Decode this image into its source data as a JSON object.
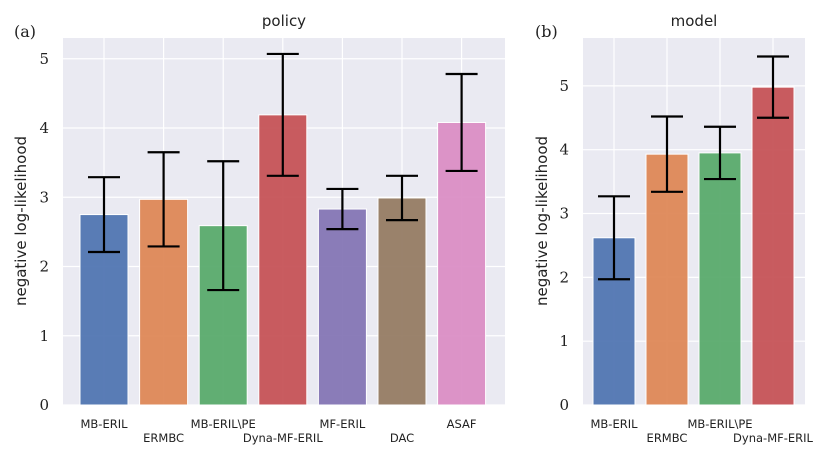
{
  "chart_data": [
    {
      "type": "bar",
      "panel_label": "(a)",
      "title": "policy",
      "xlabel": "",
      "ylabel": "negative log-likelihood",
      "ylim": [
        0,
        5.3
      ],
      "yticks": [
        "0",
        "1",
        "2",
        "3",
        "4",
        "5"
      ],
      "categories": [
        "MB-ERIL",
        "ERMBC",
        "MB-ERIL\\PE",
        "Dyna-MF-ERIL",
        "MF-ERIL",
        "DAC",
        "ASAF"
      ],
      "values": [
        2.75,
        2.97,
        2.59,
        4.19,
        2.83,
        2.99,
        4.08
      ],
      "errors": [
        0.54,
        0.68,
        0.93,
        0.88,
        0.29,
        0.32,
        0.7
      ],
      "colors": [
        "#4c72b0",
        "#dd8452",
        "#55a868",
        "#c44e52",
        "#8172b3",
        "#937860",
        "#da8bc3"
      ]
    },
    {
      "type": "bar",
      "panel_label": "(b)",
      "title": "model",
      "xlabel": "",
      "ylabel": "negative log-likelihood",
      "ylim": [
        0,
        5.75
      ],
      "yticks": [
        "0",
        "1",
        "2",
        "3",
        "4",
        "5"
      ],
      "categories": [
        "MB-ERIL",
        "ERMBC",
        "MB-ERIL\\PE",
        "Dyna-MF-ERIL"
      ],
      "values": [
        2.62,
        3.93,
        3.95,
        4.98
      ],
      "errors": [
        0.65,
        0.59,
        0.41,
        0.48
      ],
      "colors": [
        "#4c72b0",
        "#dd8452",
        "#55a868",
        "#c44e52"
      ]
    }
  ]
}
